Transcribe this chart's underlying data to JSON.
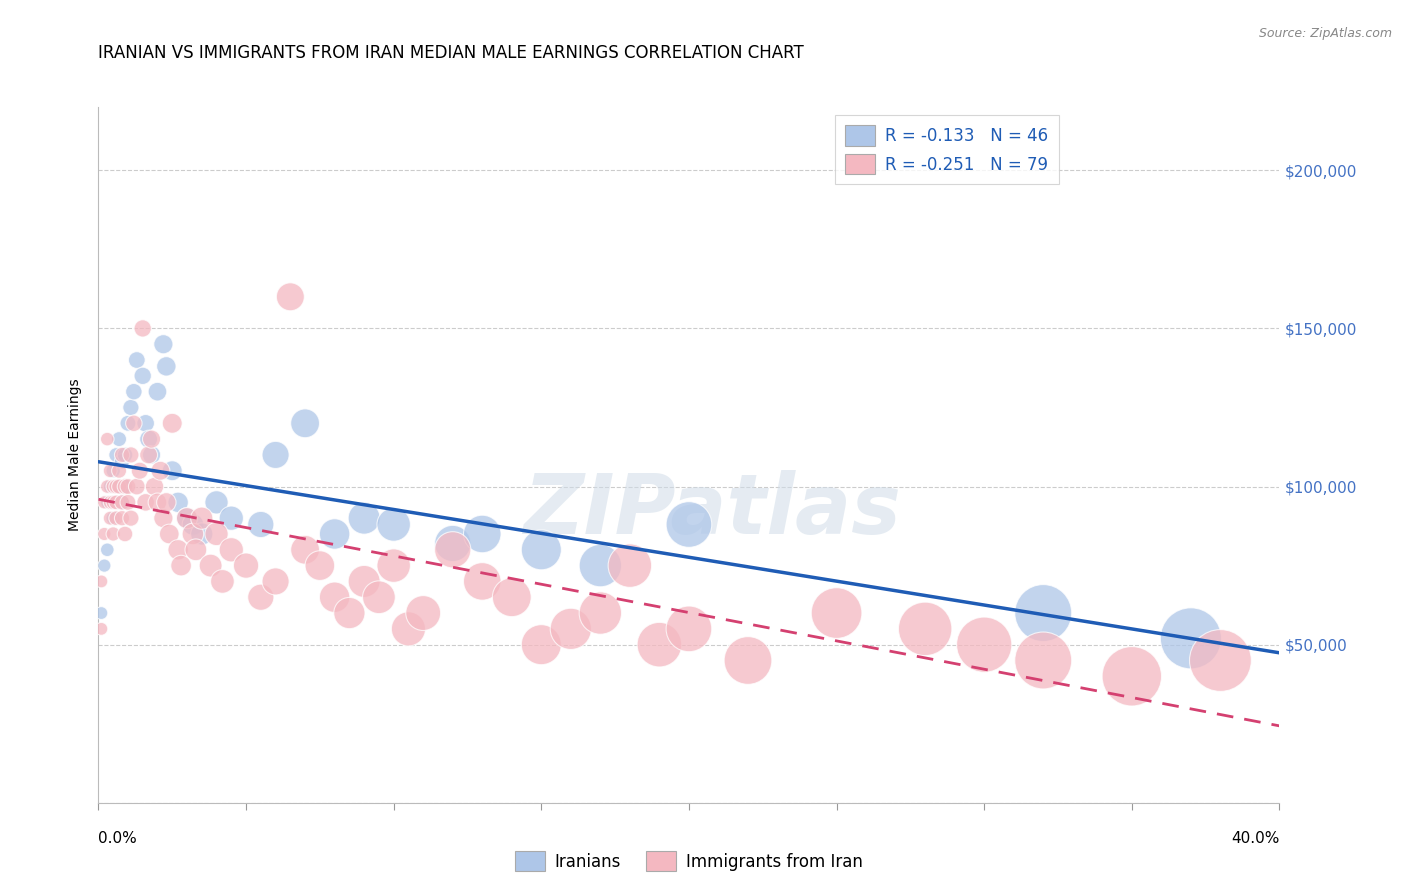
{
  "title": "IRANIAN VS IMMIGRANTS FROM IRAN MEDIAN MALE EARNINGS CORRELATION CHART",
  "source": "Source: ZipAtlas.com",
  "ylabel": "Median Male Earnings",
  "yticks": [
    0,
    50000,
    100000,
    150000,
    200000
  ],
  "ytick_labels": [
    "",
    "$50,000",
    "$100,000",
    "$150,000",
    "$200,000"
  ],
  "xlim": [
    0.0,
    0.4
  ],
  "ylim": [
    0,
    220000
  ],
  "watermark": "ZIPatlas",
  "legend_r1": "R = -0.133   N = 46",
  "legend_r2": "R = -0.251   N = 79",
  "legend_labels_bottom": [
    "Iranians",
    "Immigrants from Iran"
  ],
  "iranians_color": "#aec6e8",
  "immigrants_color": "#f4b8c1",
  "trendline_iranians_color": "#1f5cb5",
  "trendline_immigrants_color": "#d44070",
  "background_color": "#ffffff",
  "grid_color": "#cccccc",
  "legend_text_color": "#1f5cb5",
  "ytick_color": "#4472c4",
  "iranians_x": [
    0.001,
    0.002,
    0.003,
    0.003,
    0.004,
    0.005,
    0.005,
    0.006,
    0.006,
    0.007,
    0.007,
    0.008,
    0.008,
    0.009,
    0.009,
    0.01,
    0.011,
    0.012,
    0.013,
    0.015,
    0.016,
    0.017,
    0.018,
    0.02,
    0.022,
    0.023,
    0.025,
    0.027,
    0.03,
    0.032,
    0.035,
    0.04,
    0.045,
    0.055,
    0.06,
    0.07,
    0.08,
    0.09,
    0.1,
    0.12,
    0.13,
    0.15,
    0.17,
    0.2,
    0.32,
    0.37
  ],
  "iranians_y": [
    60000,
    75000,
    80000,
    95000,
    100000,
    105000,
    90000,
    110000,
    95000,
    100000,
    115000,
    108000,
    95000,
    100000,
    110000,
    120000,
    125000,
    130000,
    140000,
    135000,
    120000,
    115000,
    110000,
    130000,
    145000,
    138000,
    105000,
    95000,
    90000,
    88000,
    85000,
    95000,
    90000,
    88000,
    110000,
    120000,
    85000,
    90000,
    88000,
    82000,
    85000,
    80000,
    75000,
    88000,
    60000,
    52000
  ],
  "immigrants_x": [
    0.001,
    0.001,
    0.002,
    0.002,
    0.003,
    0.003,
    0.004,
    0.004,
    0.004,
    0.005,
    0.005,
    0.005,
    0.006,
    0.006,
    0.006,
    0.007,
    0.007,
    0.008,
    0.008,
    0.008,
    0.009,
    0.009,
    0.01,
    0.01,
    0.011,
    0.011,
    0.012,
    0.013,
    0.014,
    0.015,
    0.016,
    0.017,
    0.018,
    0.019,
    0.02,
    0.021,
    0.022,
    0.023,
    0.024,
    0.025,
    0.027,
    0.028,
    0.03,
    0.032,
    0.033,
    0.035,
    0.038,
    0.04,
    0.042,
    0.045,
    0.05,
    0.055,
    0.06,
    0.065,
    0.07,
    0.075,
    0.08,
    0.085,
    0.09,
    0.095,
    0.1,
    0.105,
    0.11,
    0.12,
    0.13,
    0.14,
    0.15,
    0.16,
    0.17,
    0.18,
    0.19,
    0.2,
    0.22,
    0.25,
    0.28,
    0.3,
    0.32,
    0.35,
    0.38
  ],
  "immigrants_y": [
    55000,
    70000,
    85000,
    95000,
    100000,
    115000,
    105000,
    90000,
    95000,
    100000,
    95000,
    85000,
    100000,
    90000,
    95000,
    105000,
    100000,
    110000,
    95000,
    90000,
    100000,
    85000,
    95000,
    100000,
    110000,
    90000,
    120000,
    100000,
    105000,
    150000,
    95000,
    110000,
    115000,
    100000,
    95000,
    105000,
    90000,
    95000,
    85000,
    120000,
    80000,
    75000,
    90000,
    85000,
    80000,
    90000,
    75000,
    85000,
    70000,
    80000,
    75000,
    65000,
    70000,
    160000,
    80000,
    75000,
    65000,
    60000,
    70000,
    65000,
    75000,
    55000,
    60000,
    80000,
    70000,
    65000,
    50000,
    55000,
    60000,
    75000,
    50000,
    55000,
    45000,
    60000,
    55000,
    50000,
    45000,
    40000,
    45000
  ],
  "title_fontsize": 12,
  "axis_label_fontsize": 10,
  "tick_fontsize": 11,
  "legend_fontsize": 12
}
